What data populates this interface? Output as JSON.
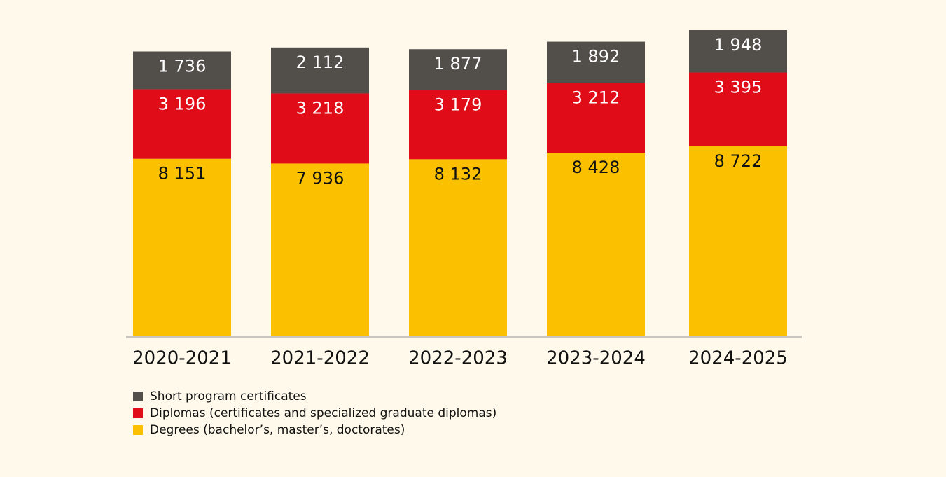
{
  "chart_data": {
    "type": "stacked_bar",
    "categories": [
      "2020-2021",
      "2021-2022",
      "2022-2023",
      "2023-2024",
      "2024-2025"
    ],
    "series": [
      {
        "name": "Short program certificates",
        "color": "#524e4a",
        "values": [
          1736,
          2112,
          1877,
          1892,
          1948
        ],
        "value_labels": [
          "1 736",
          "2 112",
          "1 877",
          "1 892",
          "1 948"
        ]
      },
      {
        "name": "Diplomas (certificates and specialized graduate diplomas)",
        "color": "#e00c18",
        "values": [
          3196,
          3218,
          3179,
          3212,
          3395
        ],
        "value_labels": [
          "3 196",
          "3 218",
          "3 179",
          "3 212",
          "3 395"
        ]
      },
      {
        "name": "Degrees (bachelor’s, master’s, doctorates)",
        "color": "#fbc100",
        "values": [
          8151,
          7936,
          8132,
          8428,
          8722
        ],
        "value_labels": [
          "8 151",
          "7 936",
          "8 132",
          "8 428",
          "8 722"
        ]
      }
    ],
    "legend": "bottom-left"
  }
}
